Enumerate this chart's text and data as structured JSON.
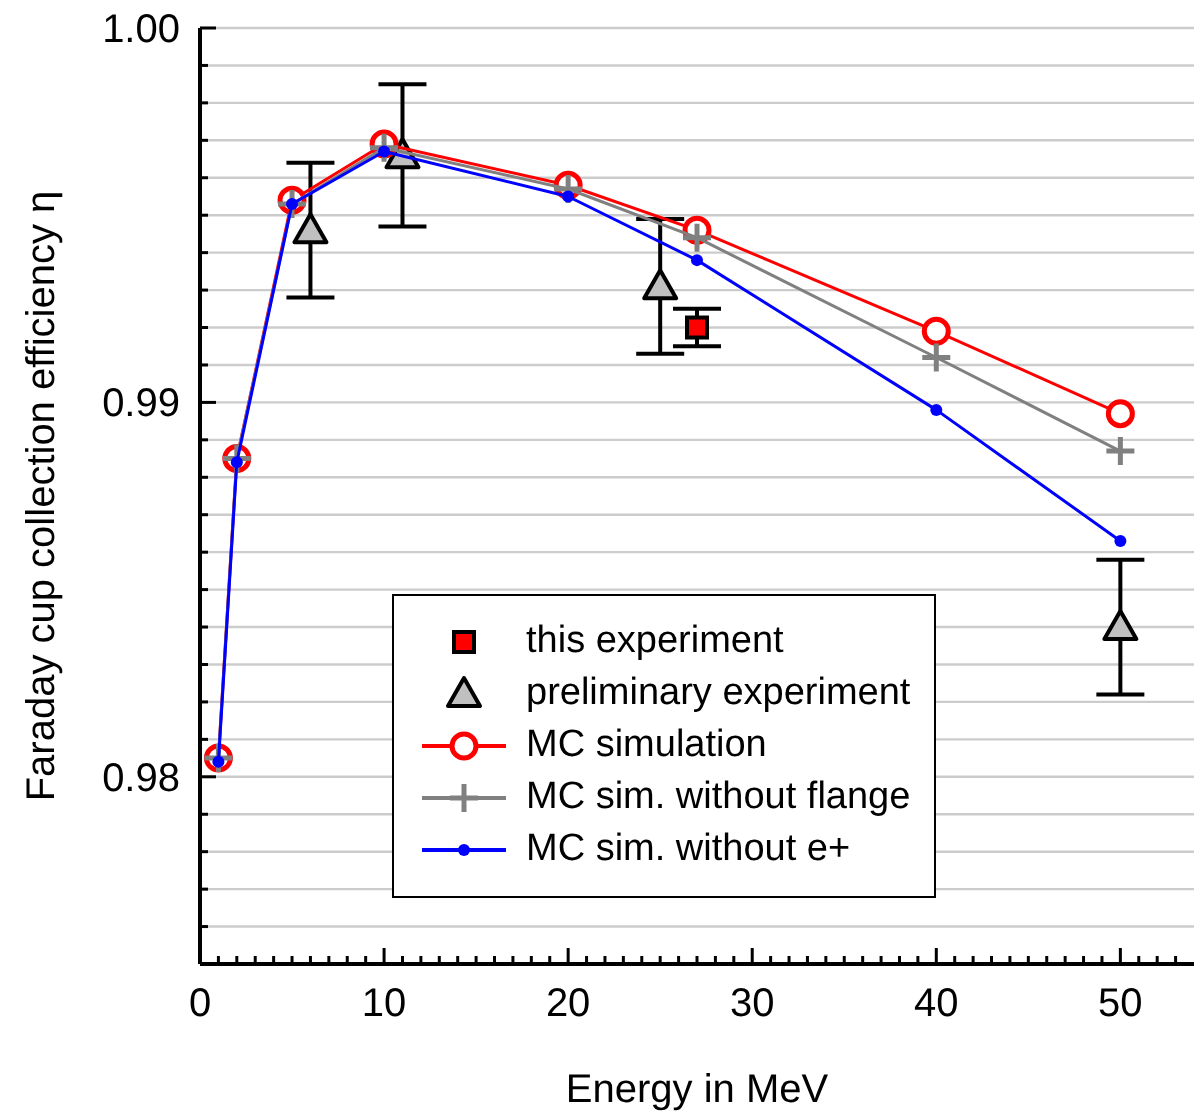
{
  "chart_data": {
    "type": "line",
    "xlabel": "Energy in MeV",
    "ylabel": "Faraday cup collection efficiency η",
    "xlim": [
      0,
      54
    ],
    "xticks": [
      0,
      {
        "value": 1,
        "label": null
      },
      {
        "value": 2,
        "label": null
      },
      {
        "value": 3,
        "label": null
      },
      {
        "value": 4,
        "label": null
      },
      {
        "value": 5,
        "label": null
      },
      {
        "value": 6,
        "label": null
      },
      {
        "value": 7,
        "label": null
      },
      {
        "value": 8,
        "label": null
      },
      {
        "value": 9,
        "label": null
      },
      10,
      {
        "value": 11,
        "label": null
      },
      {
        "value": 12,
        "label": null
      },
      {
        "value": 13,
        "label": null
      },
      {
        "value": 14,
        "label": null
      },
      {
        "value": 15,
        "label": null
      },
      {
        "value": 16,
        "label": null
      },
      {
        "value": 17,
        "label": null
      },
      {
        "value": 18,
        "label": null
      },
      {
        "value": 19,
        "label": null
      },
      20,
      {
        "value": 21,
        "label": null
      },
      {
        "value": 22,
        "label": null
      },
      {
        "value": 23,
        "label": null
      },
      {
        "value": 24,
        "label": null
      },
      {
        "value": 25,
        "label": null
      },
      {
        "value": 26,
        "label": null
      },
      {
        "value": 27,
        "label": null
      },
      {
        "value": 28,
        "label": null
      },
      {
        "value": 29,
        "label": null
      },
      30,
      {
        "value": 31,
        "label": null
      },
      {
        "value": 32,
        "label": null
      },
      {
        "value": 33,
        "label": null
      },
      {
        "value": 34,
        "label": null
      },
      {
        "value": 35,
        "label": null
      },
      {
        "value": 36,
        "label": null
      },
      {
        "value": 37,
        "label": null
      },
      {
        "value": 38,
        "label": null
      },
      {
        "value": 39,
        "label": null
      },
      40,
      {
        "value": 41,
        "label": null
      },
      {
        "value": 42,
        "label": null
      },
      {
        "value": 43,
        "label": null
      },
      {
        "value": 44,
        "label": null
      },
      {
        "value": 45,
        "label": null
      },
      {
        "value": 46,
        "label": null
      },
      {
        "value": 47,
        "label": null
      },
      {
        "value": 48,
        "label": null
      },
      {
        "value": 49,
        "label": null
      },
      50,
      {
        "value": 51,
        "label": null
      },
      {
        "value": 52,
        "label": null
      },
      {
        "value": 53,
        "label": null
      }
    ],
    "ylim": [
      0.975,
      1.0
    ],
    "yticks": [
      {
        "value": 0.976,
        "label": null
      },
      {
        "value": 0.977,
        "label": null
      },
      {
        "value": 0.978,
        "label": null
      },
      {
        "value": 0.979,
        "label": null
      },
      0.98,
      {
        "value": 0.981,
        "label": null
      },
      {
        "value": 0.982,
        "label": null
      },
      {
        "value": 0.983,
        "label": null
      },
      {
        "value": 0.984,
        "label": null
      },
      {
        "value": 0.985,
        "label": null
      },
      {
        "value": 0.986,
        "label": null
      },
      {
        "value": 0.987,
        "label": null
      },
      {
        "value": 0.988,
        "label": null
      },
      {
        "value": 0.989,
        "label": null
      },
      0.99,
      {
        "value": 0.991,
        "label": null
      },
      {
        "value": 0.992,
        "label": null
      },
      {
        "value": 0.993,
        "label": null
      },
      {
        "value": 0.994,
        "label": null
      },
      {
        "value": 0.995,
        "label": null
      },
      {
        "value": 0.996,
        "label": null
      },
      {
        "value": 0.997,
        "label": null
      },
      {
        "value": 0.998,
        "label": null
      },
      {
        "value": 0.999,
        "label": null
      },
      {
        "value": 1.0,
        "label": "1.00"
      }
    ],
    "grid": "y",
    "legend": "bottom",
    "series": [
      {
        "name": "this experiment",
        "type": "scatter",
        "marker": "square",
        "color": "#ff0000",
        "x": [
          27
        ],
        "values": [
          0.992
        ],
        "errors": [
          0.0005
        ]
      },
      {
        "name": "preliminary experiment",
        "type": "scatter",
        "marker": "triangle",
        "color": "#c0c0c0",
        "x": [
          6,
          11,
          25,
          50
        ],
        "values": [
          0.9946,
          0.9966,
          0.9931,
          0.984
        ],
        "errors": [
          0.0018,
          0.0019,
          0.0018,
          0.0018
        ]
      },
      {
        "name": "MC simulation",
        "type": "line",
        "marker": "circle",
        "color": "#ff0000",
        "x": [
          1,
          2,
          5,
          10,
          20,
          27,
          40,
          50
        ],
        "values": [
          0.9805,
          0.9885,
          0.9954,
          0.9969,
          0.9958,
          0.9946,
          0.9919,
          0.9897
        ]
      },
      {
        "name": "MC sim. without flange",
        "type": "line",
        "marker": "cross",
        "color": "#808080",
        "x": [
          1,
          2,
          5,
          10,
          20,
          27,
          40,
          50
        ],
        "values": [
          0.9805,
          0.9885,
          0.9953,
          0.9968,
          0.9957,
          0.9944,
          0.9912,
          0.9887
        ]
      },
      {
        "name": "MC sim. without e+",
        "type": "line",
        "marker": "circle",
        "color": "#0000ff",
        "x": [
          1,
          2,
          5,
          10,
          20,
          27,
          40,
          50
        ],
        "values": [
          0.9804,
          0.9884,
          0.9953,
          0.9967,
          0.9955,
          0.9938,
          0.9898,
          0.9863
        ]
      }
    ]
  }
}
